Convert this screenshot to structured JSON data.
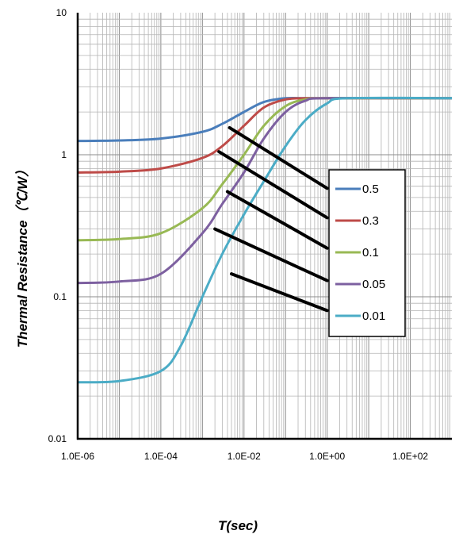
{
  "chart_data": {
    "type": "line",
    "x_scale": "log",
    "y_scale": "log",
    "xlabel": "T(sec)",
    "ylabel": "Thermal Resistance（℃/W）",
    "xlim": [
      1e-06,
      1000
    ],
    "ylim": [
      0.01,
      10
    ],
    "x_tick_labels": [
      "1.0E-06",
      "1.0E-04",
      "1.0E-02",
      "1.0E+00",
      "1.0E+02"
    ],
    "x_tick_values": [
      1e-06,
      0.0001,
      0.01,
      1,
      100
    ],
    "y_tick_labels": [
      "0.01",
      "0.1",
      "1",
      "10"
    ],
    "y_tick_values": [
      0.01,
      0.1,
      1,
      10
    ],
    "grid": true,
    "legend_placement": "right",
    "series": [
      {
        "name": "0.5",
        "color": "#4A7EBB",
        "x": [
          1e-06,
          1e-05,
          0.0001,
          0.001,
          0.003,
          0.01,
          0.03,
          0.1,
          0.3,
          1,
          1000
        ],
        "y": [
          1.25,
          1.26,
          1.3,
          1.45,
          1.65,
          2.0,
          2.35,
          2.5,
          2.5,
          2.5,
          2.5
        ]
      },
      {
        "name": "0.3",
        "color": "#BE4B48",
        "x": [
          1e-06,
          1e-05,
          0.0001,
          0.001,
          0.003,
          0.01,
          0.03,
          0.1,
          0.3,
          1,
          1000
        ],
        "y": [
          0.75,
          0.76,
          0.8,
          0.95,
          1.15,
          1.6,
          2.15,
          2.45,
          2.5,
          2.5,
          2.5
        ]
      },
      {
        "name": "0.1",
        "color": "#98B954",
        "x": [
          1e-06,
          1e-05,
          0.0001,
          0.001,
          0.003,
          0.01,
          0.03,
          0.1,
          0.3,
          1,
          1000
        ],
        "y": [
          0.25,
          0.255,
          0.28,
          0.42,
          0.62,
          1.0,
          1.6,
          2.2,
          2.45,
          2.5,
          2.5
        ]
      },
      {
        "name": "0.05",
        "color": "#7D60A0",
        "x": [
          1e-06,
          1e-05,
          0.0001,
          0.001,
          0.003,
          0.01,
          0.03,
          0.1,
          0.3,
          1,
          1000
        ],
        "y": [
          0.125,
          0.128,
          0.145,
          0.28,
          0.45,
          0.75,
          1.3,
          2.0,
          2.4,
          2.5,
          2.5
        ]
      },
      {
        "name": "0.01",
        "color": "#4BACC6",
        "x": [
          1e-06,
          1e-05,
          0.0001,
          0.0003,
          0.001,
          0.003,
          0.01,
          0.03,
          0.1,
          0.3,
          1,
          3,
          1000
        ],
        "y": [
          0.025,
          0.0255,
          0.03,
          0.045,
          0.1,
          0.2,
          0.38,
          0.65,
          1.15,
          1.75,
          2.3,
          2.5,
          2.5
        ]
      }
    ],
    "annotation_lines": [
      {
        "from": [
          0.0045,
          1.55
        ],
        "to": [
          1.0,
          0.58
        ]
      },
      {
        "from": [
          0.0025,
          1.05
        ],
        "to": [
          1.0,
          0.36
        ]
      },
      {
        "from": [
          0.004,
          0.55
        ],
        "to": [
          1.0,
          0.22
        ]
      },
      {
        "from": [
          0.002,
          0.3
        ],
        "to": [
          1.0,
          0.13
        ]
      },
      {
        "from": [
          0.005,
          0.145
        ],
        "to": [
          1.0,
          0.08
        ]
      }
    ]
  }
}
